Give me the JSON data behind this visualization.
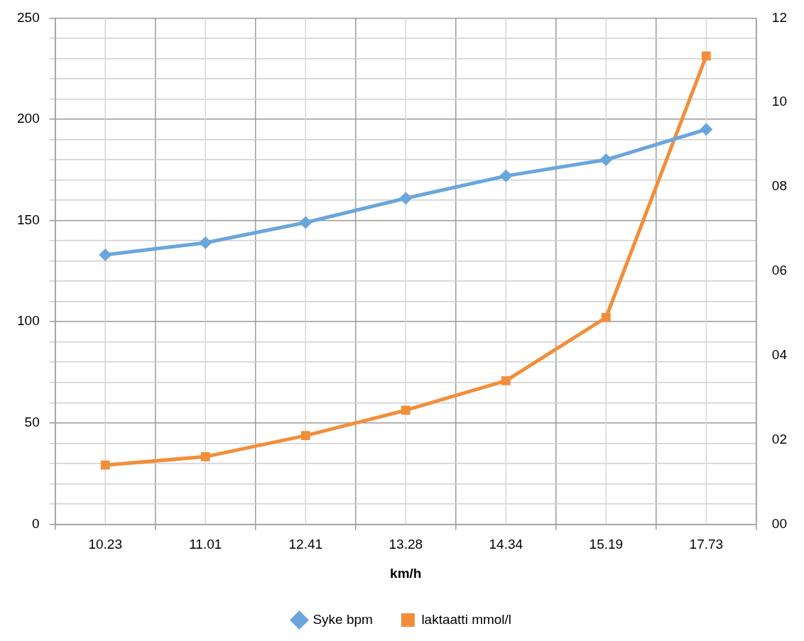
{
  "chart_data": {
    "type": "line",
    "xlabel": "km/h",
    "categories": [
      "10.23",
      "11.01",
      "12.41",
      "13.28",
      "14.34",
      "15.19",
      "17.73"
    ],
    "series": [
      {
        "name": "Syke bpm",
        "color": "#6aa6dc",
        "marker": "diamond",
        "values": [
          133,
          139,
          149,
          161,
          172,
          180,
          195
        ]
      },
      {
        "name": "laktaatti mmol/l",
        "color": "#f28e3a",
        "marker": "square",
        "axis": "y2",
        "values": [
          1.4,
          1.6,
          2.1,
          2.7,
          3.4,
          4.9,
          11.1
        ]
      }
    ],
    "ylim": [
      0,
      250
    ],
    "yticks": [
      0,
      {
        "value": 10,
        "label": null
      },
      {
        "value": 20,
        "label": null
      },
      {
        "value": 30,
        "label": null
      },
      {
        "value": 40,
        "label": null
      },
      50,
      {
        "value": 60,
        "label": null
      },
      {
        "value": 70,
        "label": null
      },
      {
        "value": 80,
        "label": null
      },
      {
        "value": 90,
        "label": null
      },
      100,
      {
        "value": 110,
        "label": null
      },
      {
        "value": 120,
        "label": null
      },
      {
        "value": 130,
        "label": null
      },
      {
        "value": 140,
        "label": null
      },
      150,
      {
        "value": 160,
        "label": null
      },
      {
        "value": 170,
        "label": null
      },
      {
        "value": 180,
        "label": null
      },
      {
        "value": 190,
        "label": null
      },
      200,
      {
        "value": 210,
        "label": null
      },
      {
        "value": 220,
        "label": null
      },
      {
        "value": 230,
        "label": null
      },
      {
        "value": 240,
        "label": null
      },
      250
    ],
    "y2lim": [
      0,
      12
    ],
    "y2ticks": [
      {
        "value": 0,
        "label": "00"
      },
      {
        "value": 2,
        "label": "02"
      },
      {
        "value": 4,
        "label": "04"
      },
      {
        "value": 6,
        "label": "06"
      },
      {
        "value": 8,
        "label": "08"
      },
      {
        "value": 10,
        "label": "10"
      },
      {
        "value": 12,
        "label": "12"
      }
    ],
    "grid": true,
    "legend": "bottom"
  }
}
